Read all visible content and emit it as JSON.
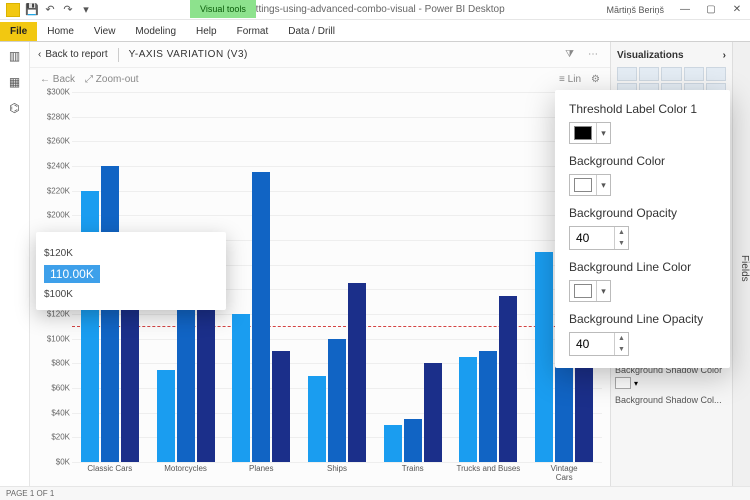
{
  "window": {
    "title": "y-axis-style-settings-using-advanced-combo-visual - Power BI Desktop",
    "user": "Mārtiņš Beriņš",
    "context_tab": "Visual tools"
  },
  "ribbon": {
    "file": "File",
    "tabs": [
      "Home",
      "View",
      "Modeling",
      "Help",
      "Format",
      "Data / Drill"
    ]
  },
  "leftrail": {
    "items": [
      "report",
      "data",
      "model"
    ]
  },
  "report": {
    "back": "Back to report",
    "title": "Y-AXIS VARIATION (V3)",
    "toolbar_back": "Back",
    "toolbar_zoom": "Zoom-out",
    "toolbar_lin": "Lin"
  },
  "chart": {
    "type": "grouped-bar",
    "y_max": 300000,
    "y_step": 20000,
    "y_tick_prefix": "$",
    "y_tick_suffix": "K",
    "threshold_value": 110000,
    "threshold_line_color": "#d44444",
    "grid_color": "#eeeeee",
    "series_colors": [
      "#1a9df0",
      "#1164c4",
      "#1b2f8a"
    ],
    "categories": [
      "Classic Cars",
      "Motorcycles",
      "Planes",
      "Ships",
      "Trains",
      "Trucks and Buses",
      "Vintage Cars"
    ],
    "values": [
      [
        220000,
        240000,
        165000
      ],
      [
        75000,
        130000,
        165000
      ],
      [
        120000,
        235000,
        90000
      ],
      [
        70000,
        100000,
        145000
      ],
      [
        30000,
        35000,
        80000
      ],
      [
        85000,
        90000,
        135000
      ],
      [
        170000,
        125000,
        135000
      ]
    ]
  },
  "tooltip": {
    "value_label": "110.00K",
    "row1_left": "$120K",
    "row2_left": "$100K"
  },
  "vis_pane": {
    "title": "Visualizations",
    "fields_tab": "Fields",
    "section1": "Background Shadow Color",
    "section2": "Background Shadow Col..."
  },
  "popover": {
    "label1": "Threshold Label Color 1",
    "color1": "#000000",
    "label2": "Background Color",
    "color2": "#ffffff",
    "label3": "Background Opacity",
    "value3": "40",
    "label4": "Background Line Color",
    "color4": "#ffffff",
    "label5": "Background Line Opacity",
    "value5": "40"
  },
  "status": {
    "page": "PAGE 1 OF 1"
  }
}
